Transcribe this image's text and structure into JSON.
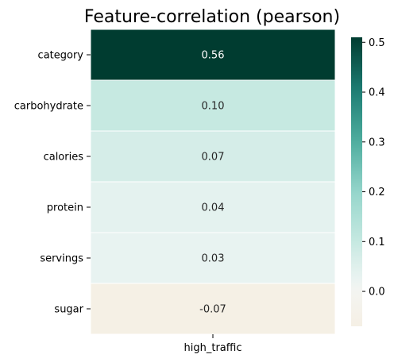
{
  "chart_data": {
    "type": "heatmap",
    "title": "Feature-correlation (pearson)",
    "x_categories": [
      "high_traffic"
    ],
    "y_categories": [
      "category",
      "carbohydrate",
      "calories",
      "protein",
      "servings",
      "sugar"
    ],
    "values": [
      0.56,
      0.1,
      0.07,
      0.04,
      0.03,
      -0.07
    ],
    "value_labels": [
      "0.56",
      "0.10",
      "0.07",
      "0.04",
      "0.03",
      "-0.07"
    ],
    "colormap": "BrBG",
    "color_range": [
      -0.07,
      0.51
    ],
    "colorbar_ticks": [
      "0.0",
      "0.1",
      "0.2",
      "0.3",
      "0.4",
      "0.5"
    ],
    "colorbar_tick_values": [
      0.0,
      0.1,
      0.2,
      0.3,
      0.4,
      0.5
    ],
    "legend": "colorbar-right",
    "grid": false
  },
  "colors": {
    "cmap_stops": [
      {
        "v": -0.07,
        "c": "#f5f0e5"
      },
      {
        "v": 0.0,
        "c": "#f4f4f1"
      },
      {
        "v": 0.03,
        "c": "#e8f3f1"
      },
      {
        "v": 0.04,
        "c": "#e4f2ef"
      },
      {
        "v": 0.07,
        "c": "#d5ede8"
      },
      {
        "v": 0.1,
        "c": "#c6e9e1"
      },
      {
        "v": 0.2,
        "c": "#95d5cb"
      },
      {
        "v": 0.3,
        "c": "#4fae9f"
      },
      {
        "v": 0.4,
        "c": "#1f7f76"
      },
      {
        "v": 0.51,
        "c": "#003c30"
      }
    ],
    "text_dark": "#262626",
    "text_light": "#ffffff",
    "cell_border": "#ffffff",
    "axis": "#000000"
  }
}
